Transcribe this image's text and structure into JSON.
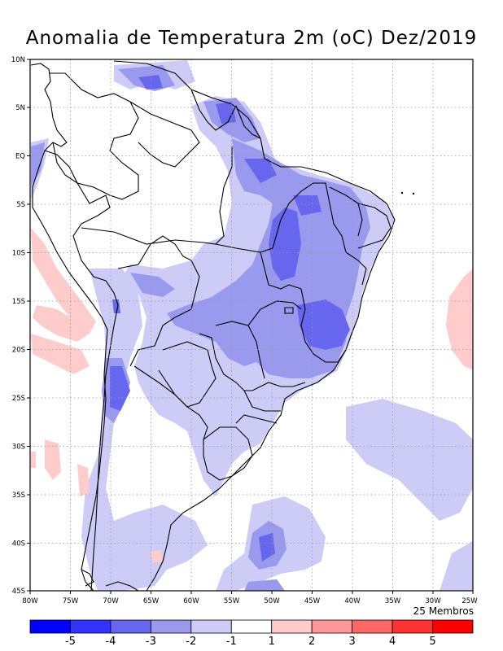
{
  "title": "Anomalia de Temperatura 2m (oC) Dez/2019",
  "members_note": "25 Membros",
  "axes": {
    "lat_labels": [
      "10N",
      "5N",
      "EQ",
      "5S",
      "10S",
      "15S",
      "20S",
      "25S",
      "30S",
      "35S",
      "40S",
      "45S"
    ],
    "lon_labels": [
      "80W",
      "75W",
      "70W",
      "65W",
      "60W",
      "55W",
      "50W",
      "45W",
      "40W",
      "35W",
      "30W",
      "25W"
    ]
  },
  "colorbar": {
    "labels": [
      "-5",
      "-4",
      "-3",
      "-2",
      "-1",
      "1",
      "2",
      "3",
      "4",
      "5"
    ],
    "colors": [
      "#0000ff",
      "#3333ff",
      "#6666ee",
      "#9999ee",
      "#ccccf7",
      "#ffffff",
      "#ffcccc",
      "#ff9999",
      "#ff6666",
      "#ff3333",
      "#ff0000"
    ]
  },
  "colors": {
    "grid": "#999999",
    "border": "#000000"
  }
}
